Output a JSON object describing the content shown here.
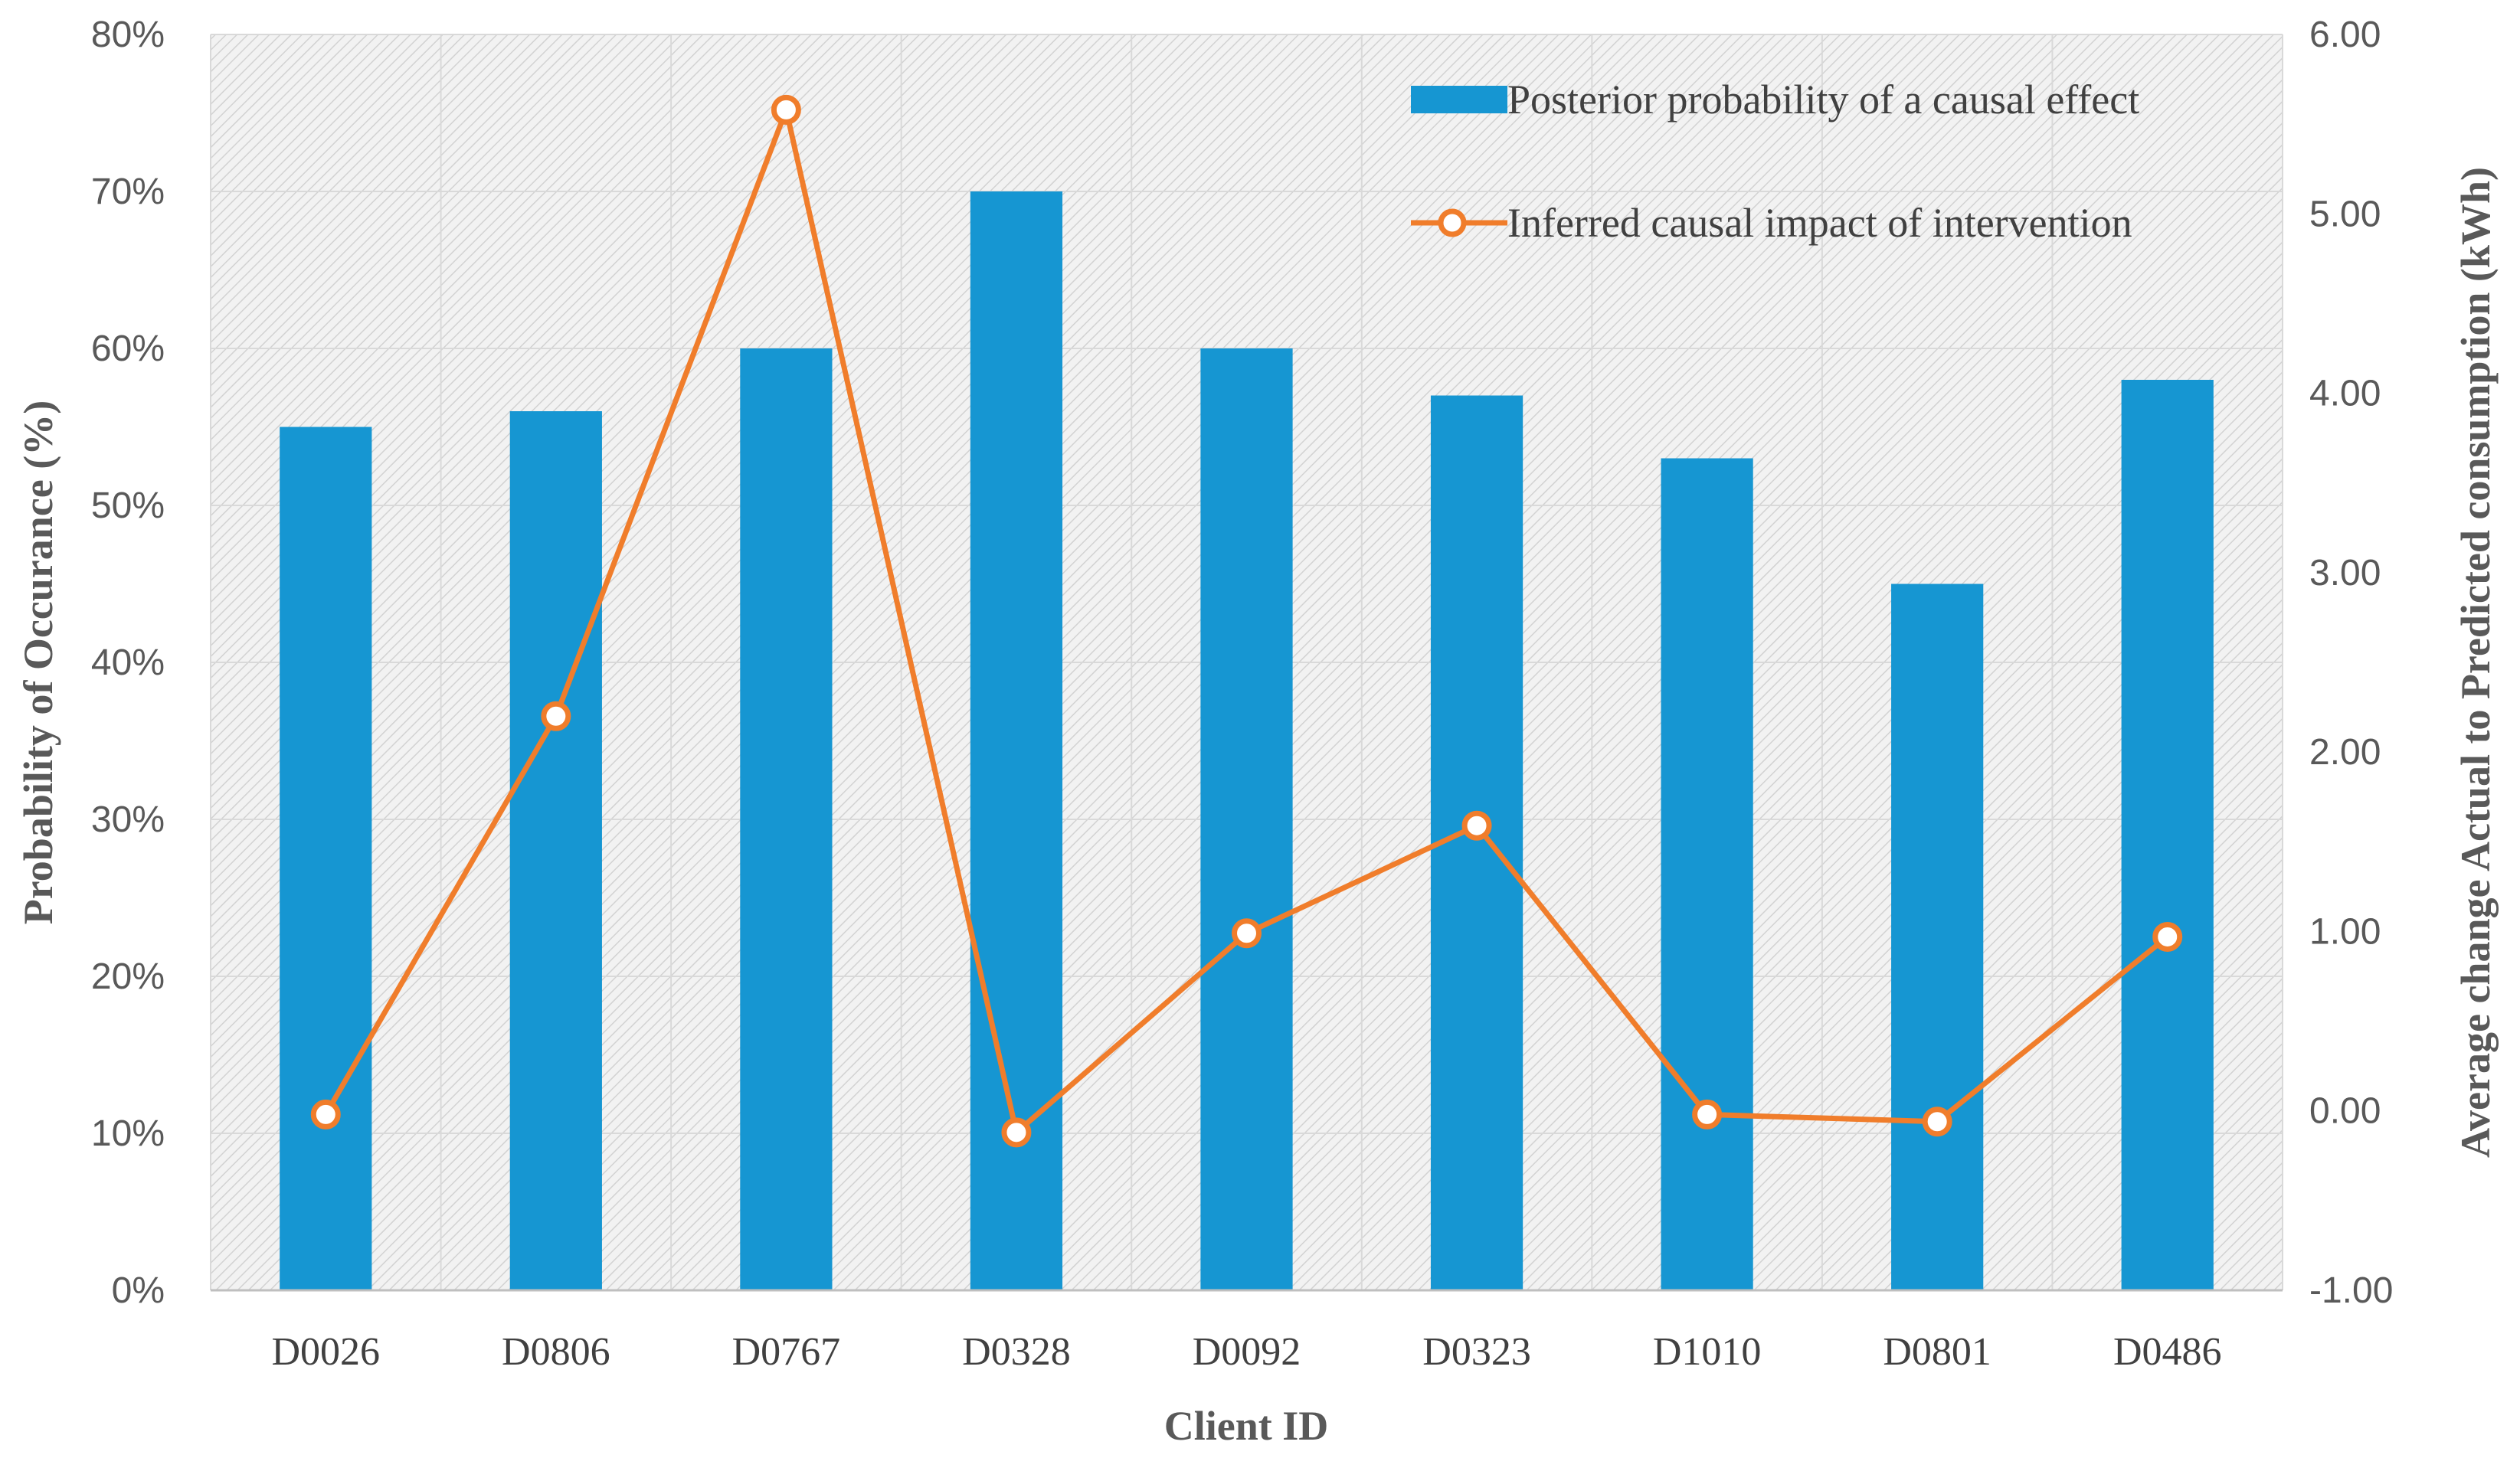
{
  "chart_data": {
    "type": "bar",
    "categories": [
      "D0026",
      "D0806",
      "D0767",
      "D0328",
      "D0092",
      "D0323",
      "D1010",
      "D0801",
      "D0486"
    ],
    "series": [
      {
        "name": "Posterior probability of a causal effect",
        "type": "bar",
        "axis": "left",
        "values": [
          55,
          56,
          60,
          70,
          60,
          57,
          53,
          45,
          58
        ],
        "color": "#1696d2"
      },
      {
        "name": "Inferred causal impact of intervention",
        "type": "line",
        "axis": "right",
        "values": [
          -0.02,
          2.2,
          5.58,
          -0.12,
          0.99,
          1.59,
          -0.02,
          -0.06,
          0.97
        ],
        "color": "#f07d2b"
      }
    ],
    "xlabel": "Client ID",
    "ylabel": "Probability of Occurance (%)",
    "y2label": "Average change Actual to Predicted  consumption (kWh)",
    "ylim": [
      0,
      80
    ],
    "y2lim": [
      -1,
      6
    ],
    "yticks": [
      "0%",
      "10%",
      "20%",
      "30%",
      "40%",
      "50%",
      "60%",
      "70%",
      "80%"
    ],
    "y2ticks": [
      "-1.00",
      "0.00",
      "1.00",
      "2.00",
      "3.00",
      "4.00",
      "5.00",
      "6.00"
    ],
    "grid": true,
    "legend": "top-right"
  }
}
